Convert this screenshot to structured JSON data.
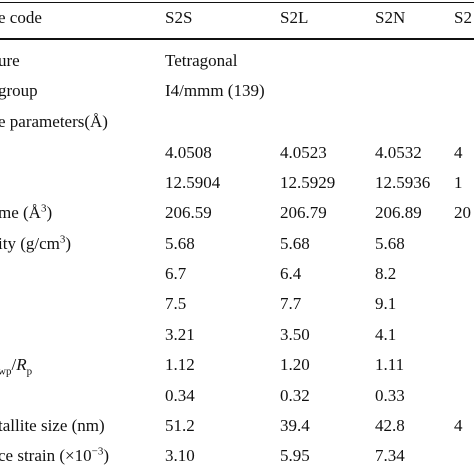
{
  "table": {
    "header": {
      "label": "e code",
      "columns": [
        "S2S",
        "S2L",
        "S2N",
        "S2"
      ]
    },
    "rows": [
      {
        "label": "ure",
        "s2s": "Tetragonal"
      },
      {
        "label": "group",
        "s2s": "I4/mmm (139)"
      },
      {
        "label": "e parameters(Å)"
      },
      {
        "s2s": "4.0508",
        "s2l": "4.0523",
        "s2n": "4.0532",
        "s2x": "4"
      },
      {
        "s2s": "12.5904",
        "s2l": "12.5929",
        "s2n": "12.5936",
        "s2x": "1"
      },
      {
        "label_main": "me (Å",
        "label_sup": "3",
        "label_end": ")",
        "s2s": "206.59",
        "s2l": "206.79",
        "s2n": "206.89",
        "s2x": "20"
      },
      {
        "label_main": "ity (g/cm",
        "label_sup": "3",
        "label_end": ")",
        "s2s": "5.68",
        "s2l": "5.68",
        "s2n": "5.68"
      },
      {
        "s2s": "6.7",
        "s2l": "6.4",
        "s2n": "8.2"
      },
      {
        "s2s": "7.5",
        "s2l": "7.7",
        "s2n": "9.1"
      },
      {
        "s2s": "3.21",
        "s2l": "3.50",
        "s2n": "4.1"
      },
      {
        "label_sub": "wp",
        "label_slash": "/",
        "label_r": "R",
        "label_sub2": "p",
        "s2s": "1.12",
        "s2l": "1.20",
        "s2n": "1.11"
      },
      {
        "s2s": "0.34",
        "s2l": "0.32",
        "s2n": "0.33"
      },
      {
        "label": "tallite size (nm)",
        "s2s": "51.2",
        "s2l": "39.4",
        "s2n": "42.8",
        "s2x": "4"
      },
      {
        "label_main": "ce strain (×10",
        "label_sup": "−3",
        "label_end": ")",
        "s2s": "3.10",
        "s2l": "5.95",
        "s2n": "7.34"
      }
    ]
  }
}
